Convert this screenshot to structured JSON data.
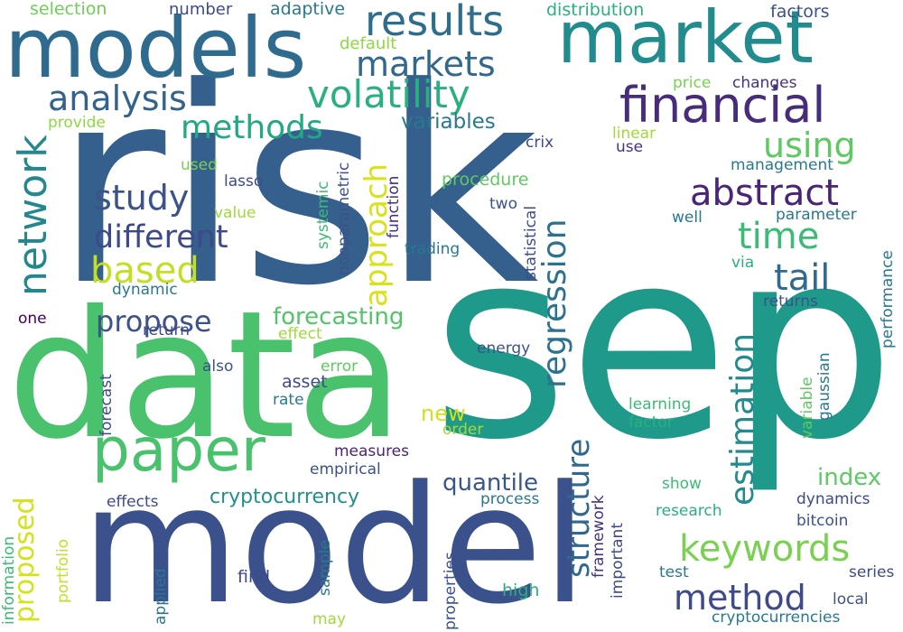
{
  "words": [
    {
      "text": "risk",
      "color": "#355f8d"
    },
    {
      "text": "sep",
      "color": "#1f9a8a"
    },
    {
      "text": "data",
      "color": "#4ac16d"
    },
    {
      "text": "model",
      "color": "#3b518b"
    },
    {
      "text": "market",
      "color": "#228b8d"
    },
    {
      "text": "models",
      "color": "#2f6b8e"
    },
    {
      "text": "paper",
      "color": "#4ac16d"
    },
    {
      "text": "financial",
      "color": "#472c7a"
    },
    {
      "text": "results",
      "color": "#2e6d8e"
    },
    {
      "text": "volatility",
      "color": "#2ab07f"
    },
    {
      "text": "analysis",
      "color": "#33638d"
    },
    {
      "text": "network",
      "color": "#24878e"
    },
    {
      "text": "markets",
      "color": "#31688e"
    },
    {
      "text": "methods",
      "color": "#22a884"
    },
    {
      "text": "abstract",
      "color": "#482576"
    },
    {
      "text": "using",
      "color": "#5ec962"
    },
    {
      "text": "study",
      "color": "#3b528b"
    },
    {
      "text": "time",
      "color": "#3bbb75"
    },
    {
      "text": "different",
      "color": "#3e4989"
    },
    {
      "text": "based",
      "color": "#c2df23"
    },
    {
      "text": "tail",
      "color": "#306a8e"
    },
    {
      "text": "approach",
      "color": "#d8e219"
    },
    {
      "text": "regression",
      "color": "#2c728e"
    },
    {
      "text": "estimation",
      "color": "#238a8d"
    },
    {
      "text": "propose",
      "color": "#3b528b"
    },
    {
      "text": "keywords",
      "color": "#7ad151"
    },
    {
      "text": "method",
      "color": "#3e4a89"
    },
    {
      "text": "structure",
      "color": "#31688e"
    },
    {
      "text": "proposed",
      "color": "#d2e21b"
    },
    {
      "text": "variables",
      "color": "#2a788e"
    },
    {
      "text": "forecasting",
      "color": "#52c569"
    },
    {
      "text": "quantile",
      "color": "#39568c"
    },
    {
      "text": "index",
      "color": "#5ec962"
    },
    {
      "text": "cryptocurrency",
      "color": "#21908d"
    },
    {
      "text": "new",
      "color": "#d0e11c"
    },
    {
      "text": "selection",
      "color": "#6ece58"
    },
    {
      "text": "number",
      "color": "#3e4a89"
    },
    {
      "text": "adaptive",
      "color": "#2a788e"
    },
    {
      "text": "default",
      "color": "#90d743"
    },
    {
      "text": "distribution",
      "color": "#2ab07f"
    },
    {
      "text": "factors",
      "color": "#3b528b"
    },
    {
      "text": "price",
      "color": "#7ad151"
    },
    {
      "text": "changes",
      "color": "#46337e"
    },
    {
      "text": "provide",
      "color": "#90d743"
    },
    {
      "text": "linear",
      "color": "#a0da39"
    },
    {
      "text": "use",
      "color": "#46337e"
    },
    {
      "text": "crix",
      "color": "#3e4a89"
    },
    {
      "text": "management",
      "color": "#2a788e"
    },
    {
      "text": "used",
      "color": "#7ad151"
    },
    {
      "text": "lasso",
      "color": "#3e4a89"
    },
    {
      "text": "procedure",
      "color": "#5ec962"
    },
    {
      "text": "two",
      "color": "#3b528b"
    },
    {
      "text": "value",
      "color": "#a0da39"
    },
    {
      "text": "well",
      "color": "#2a788e"
    },
    {
      "text": "parameter",
      "color": "#2a788e"
    },
    {
      "text": "systemic",
      "color": "#3bbb75"
    },
    {
      "text": "nonparametric",
      "color": "#3b528b"
    },
    {
      "text": "function",
      "color": "#46337e"
    },
    {
      "text": "trading",
      "color": "#2a788e"
    },
    {
      "text": "statistical",
      "color": "#3e4a89"
    },
    {
      "text": "dynamic",
      "color": "#2a788e"
    },
    {
      "text": "via",
      "color": "#2ab07f"
    },
    {
      "text": "one",
      "color": "#440154"
    },
    {
      "text": "return",
      "color": "#3e4a89"
    },
    {
      "text": "returns",
      "color": "#3b528b"
    },
    {
      "text": "performance",
      "color": "#2a788e"
    },
    {
      "text": "effect",
      "color": "#a0da39"
    },
    {
      "text": "forecast",
      "color": "#3e4a89"
    },
    {
      "text": "energy",
      "color": "#3b528b"
    },
    {
      "text": "also",
      "color": "#3b528b"
    },
    {
      "text": "error",
      "color": "#5ec962"
    },
    {
      "text": "asset",
      "color": "#3e4a89"
    },
    {
      "text": "rate",
      "color": "#2a788e"
    },
    {
      "text": "variable",
      "color": "#5ec962"
    },
    {
      "text": "gaussian",
      "color": "#2a788e"
    },
    {
      "text": "learning",
      "color": "#3bbb75"
    },
    {
      "text": "factor",
      "color": "#2ab07f"
    },
    {
      "text": "order",
      "color": "#a0da39"
    },
    {
      "text": "measures",
      "color": "#482576"
    },
    {
      "text": "empirical",
      "color": "#3b528b"
    },
    {
      "text": "information",
      "color": "#3bbb75"
    },
    {
      "text": "portfolio",
      "color": "#c2df23"
    },
    {
      "text": "effects",
      "color": "#3e4a89"
    },
    {
      "text": "process",
      "color": "#2a788e"
    },
    {
      "text": "show",
      "color": "#3bbb75"
    },
    {
      "text": "framework",
      "color": "#46337e"
    },
    {
      "text": "important",
      "color": "#3e4a89"
    },
    {
      "text": "dynamics",
      "color": "#3e4a89"
    },
    {
      "text": "research",
      "color": "#2ab07f"
    },
    {
      "text": "bitcoin",
      "color": "#3b528b"
    },
    {
      "text": "properties",
      "color": "#3b528b"
    },
    {
      "text": "applied",
      "color": "#2a788e"
    },
    {
      "text": "sample",
      "color": "#2a788e"
    },
    {
      "text": "find",
      "color": "#3e4a89"
    },
    {
      "text": "high",
      "color": "#2ab07f"
    },
    {
      "text": "test",
      "color": "#2a788e"
    },
    {
      "text": "series",
      "color": "#3e4a89"
    },
    {
      "text": "local",
      "color": "#3b528b"
    },
    {
      "text": "may",
      "color": "#a0da39"
    },
    {
      "text": "cryptocurrencies",
      "color": "#2a788e"
    }
  ]
}
